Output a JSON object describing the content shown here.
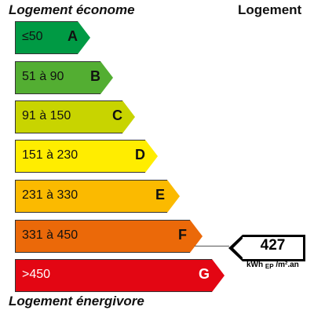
{
  "header": {
    "left": "Logement économe",
    "right": "Logement"
  },
  "footer": {
    "left": "Logement énergivore"
  },
  "bands": [
    {
      "range": "≤50",
      "letter": "A",
      "color": "#009a44"
    },
    {
      "range": "51 à 90",
      "letter": "B",
      "color": "#53ae32"
    },
    {
      "range": "91 à 150",
      "letter": "C",
      "color": "#c8d400"
    },
    {
      "range": "151 à 230",
      "letter": "D",
      "color": "#ffed00"
    },
    {
      "range": "231 à 330",
      "letter": "E",
      "color": "#fbba00"
    },
    {
      "range": "331 à 450",
      "letter": "F",
      "color": "#eb6909"
    },
    {
      "range": ">450",
      "letter": "G",
      "color": "#e30613"
    }
  ],
  "indicator": {
    "value": "427",
    "unit_main": "kWh",
    "unit_sub": "EP",
    "unit_rest": "/m².an",
    "band": "F"
  }
}
